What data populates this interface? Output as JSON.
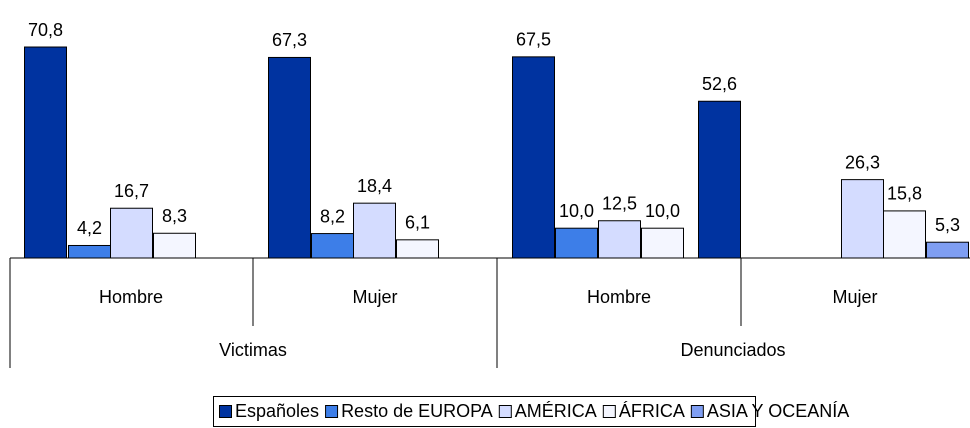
{
  "chart_data": {
    "type": "bar",
    "categories": [
      "Hombre",
      "Mujer",
      "Hombre",
      "Mujer"
    ],
    "category_groups": [
      "Victimas",
      "Denunciados"
    ],
    "series": [
      {
        "name": "Españoles",
        "color": "#0033a0",
        "values": [
          70.8,
          67.3,
          67.5,
          52.6
        ],
        "value_labels": [
          "70,8",
          "67,3",
          "67,5",
          "52,6"
        ]
      },
      {
        "name": "Resto de EUROPA",
        "color": "#3d7ee8",
        "values": [
          4.2,
          8.2,
          10.0,
          null
        ],
        "value_labels": [
          "4,2",
          "8,2",
          "10,0",
          null
        ]
      },
      {
        "name": "AMÉRICA",
        "color": "#d4dcff",
        "values": [
          16.7,
          18.4,
          12.5,
          26.3
        ],
        "value_labels": [
          "16,7",
          "18,4",
          "12,5",
          "26,3"
        ]
      },
      {
        "name": "ÁFRICA",
        "color": "#f4f6ff",
        "values": [
          8.3,
          6.1,
          10.0,
          15.8
        ],
        "value_labels": [
          "8,3",
          "6,1",
          "10,0",
          "15,8"
        ]
      },
      {
        "name": "ASIA Y OCEANÍA",
        "color": "#7f9ef2",
        "values": [
          null,
          null,
          null,
          5.3
        ],
        "value_labels": [
          null,
          null,
          null,
          "5,3"
        ]
      }
    ]
  }
}
